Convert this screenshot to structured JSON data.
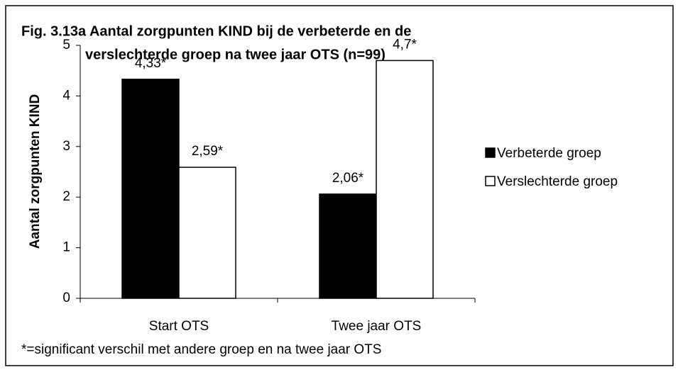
{
  "chart_data": {
    "type": "bar",
    "title": [
      "Fig. 3.13a Aantal zorgpunten KIND bij de verbeterde en de",
      "verslechterde groep na twee jaar OTS (n=99)"
    ],
    "y_label": "Aantal zorgpunten KIND",
    "categories": [
      "Start OTS",
      "Twee jaar OTS"
    ],
    "series": [
      {
        "name": "Verbeterde groep",
        "color": "#000000",
        "values": [
          4.33,
          2.06
        ],
        "value_labels": [
          "4,33*",
          "2,06*"
        ]
      },
      {
        "name": "Verslechterde groep",
        "color": "#ffffff",
        "values": [
          2.59,
          4.7
        ],
        "value_labels": [
          "2,59*",
          "4,7*"
        ]
      }
    ],
    "ylim": [
      0,
      5
    ],
    "yticks": [
      0,
      1,
      2,
      3,
      4,
      5
    ],
    "legend": "right",
    "annotation": "*=significant verschil met andere groep en na twee jaar OTS"
  }
}
